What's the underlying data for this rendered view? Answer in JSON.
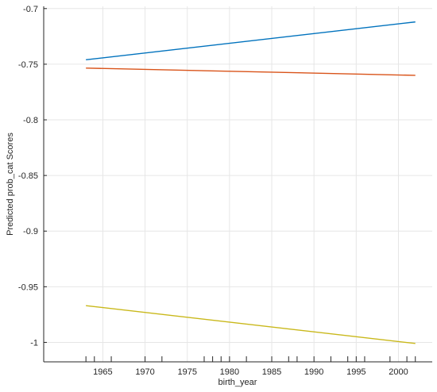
{
  "chart_data": {
    "type": "line",
    "title": "",
    "xlabel": "birth_year",
    "ylabel": "Predicted prob_cat Scores",
    "xlim": [
      1958,
      2004
    ],
    "ylim": [
      -1.0175,
      -0.698
    ],
    "xticks": [
      1965,
      1970,
      1975,
      1980,
      1985,
      1990,
      1995,
      2000
    ],
    "yticks": [
      -0.7,
      -0.75,
      -0.8,
      -0.85,
      -0.9,
      -0.95,
      -1
    ],
    "ytick_labels": [
      "-0.7",
      "-0.75",
      "-0.8",
      "-0.85",
      "-0.9",
      "-0.95",
      "-1"
    ],
    "grid": true,
    "rug_x": [
      1963,
      1964,
      1966,
      1970,
      1972,
      1977,
      1978,
      1979,
      1980,
      1982,
      1985,
      1987,
      1988,
      1990,
      1992,
      1994,
      1995,
      1996,
      1999,
      2001,
      2002
    ],
    "series": [
      {
        "color": "#0072BD",
        "x": [
          1963,
          2002
        ],
        "y": [
          -0.746,
          -0.712
        ]
      },
      {
        "color": "#D95319",
        "x": [
          1963,
          2002
        ],
        "y": [
          -0.7535,
          -0.76
        ]
      },
      {
        "color": "#C9B81A",
        "x": [
          1963,
          2002
        ],
        "y": [
          -0.967,
          -1.001
        ]
      }
    ]
  }
}
